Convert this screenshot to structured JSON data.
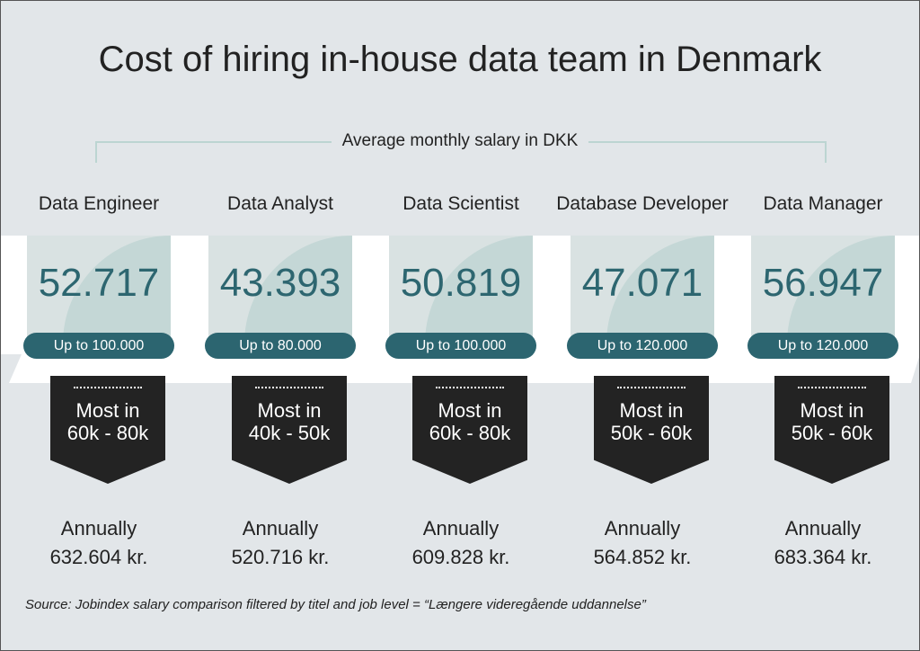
{
  "title": "Cost of hiring in-house data team in Denmark",
  "subtitle": "Average monthly salary in DKK",
  "roles": [
    {
      "name": "Data Engineer",
      "avg": "52.717",
      "up_to": "Up to 100.000",
      "most1": "Most in",
      "most2": "60k - 80k",
      "annual_label": "Annually",
      "annual": "632.604 kr."
    },
    {
      "name": "Data Analyst",
      "avg": "43.393",
      "up_to": "Up to 80.000",
      "most1": "Most in",
      "most2": "40k - 50k",
      "annual_label": "Annually",
      "annual": "520.716 kr."
    },
    {
      "name": "Data Scientist",
      "avg": "50.819",
      "up_to": "Up to 100.000",
      "most1": "Most in",
      "most2": "60k - 80k",
      "annual_label": "Annually",
      "annual": "609.828 kr."
    },
    {
      "name": "Database Developer",
      "avg": "47.071",
      "up_to": "Up to 120.000",
      "most1": "Most in",
      "most2": "50k - 60k",
      "annual_label": "Annually",
      "annual": "564.852 kr."
    },
    {
      "name": "Data Manager",
      "avg": "56.947",
      "up_to": "Up to 120.000",
      "most1": "Most in",
      "most2": "50k - 60k",
      "annual_label": "Annually",
      "annual": "683.364 kr."
    }
  ],
  "source": "Source: Jobindex salary comparison filtered by titel and job level = “Længere videregående uddannelse”",
  "colors": {
    "accent": "#2c6570",
    "card": "#d9e2e2",
    "badge": "#232323",
    "background": "#e2e6e9"
  }
}
